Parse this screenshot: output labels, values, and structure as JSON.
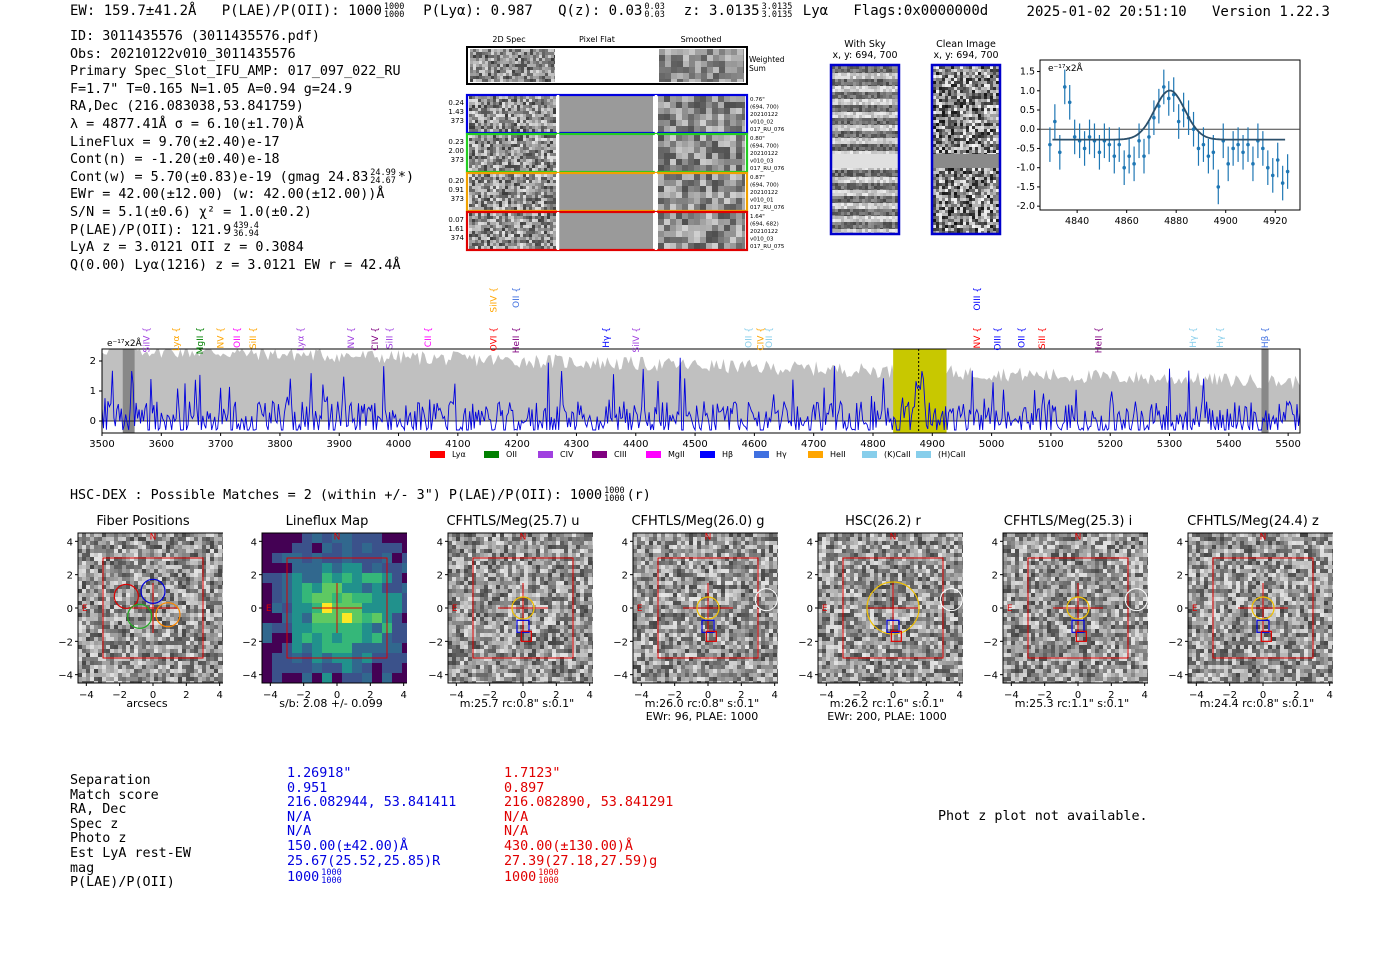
{
  "header": {
    "ew": "EW: 159.7±41.2Å",
    "plae_label": "P(LAE)/P(OII): 1000",
    "plae_hi": "1000",
    "plae_lo": "1000",
    "plya": "P(Lyα): 0.987",
    "qz_label": "Q(z): 0.03",
    "qz_hi": "0.03",
    "qz_lo": "0.03",
    "z_label": "z: 3.0135",
    "z_hi": "3.0135",
    "z_lo": "3.0135",
    "z_line": "Lyα",
    "flags": "Flags:0x0000000d",
    "datetime": "2025-01-02 20:51:10",
    "version": "Version 1.22.3"
  },
  "info": {
    "lines": [
      "ID: 3011435576 (3011435576.pdf)",
      "Obs: 20210122v010_3011435576",
      "Primary Spec_Slot_IFU_AMP: 017_097_022_RU",
      "F=1.7\"  T=0.165  N=1.05  A=0.94  g=24.9",
      "RA,Dec (216.083038,53.841759)",
      "λ = 4877.41Å  σ = 6.10(±1.70)Å",
      "LineFlux = 9.70(±2.40)e-17",
      "Cont(n) = -1.20(±0.40)e-18"
    ],
    "contw": "Cont(w) = 5.70(±0.83)e-19 (gmag 24.83",
    "contw_hi": "24.99",
    "contw_lo": "24.67",
    "contw_end": "*)",
    "lines2": [
      "EWr = 42.00(±12.00) (w: 42.00(±12.00))Å",
      "S/N = 5.1(±0.6)  χ² = 1.0(±0.2)"
    ],
    "plae2": "P(LAE)/P(OII): 121.9",
    "plae2_hi": "439.4",
    "plae2_lo": "36.94",
    "lines3": [
      "LyA z = 3.0121  OII z = 0.3084",
      "Q(0.00) Lyα(1216) z = 3.0121  EW r = 42.4Å"
    ]
  },
  "stamps": {
    "col_titles": [
      "2D Spec",
      "Pixel Flat",
      "Smoothed"
    ],
    "weighted_label": [
      "Weighted",
      "Sum"
    ],
    "rows": [
      {
        "left": [
          "0.24",
          "1.43",
          "373"
        ],
        "right": [
          "0.76\"",
          "(694, 700)",
          "20210122",
          "v010_02",
          "017_RU_076"
        ],
        "color": "#0000e0"
      },
      {
        "left": [
          "0.23",
          "2.00",
          "373"
        ],
        "right": [
          "0.80\"",
          "(694, 700)",
          "20210122",
          "v010_03",
          "017_RU_076"
        ],
        "color": "#22cc22"
      },
      {
        "left": [
          "0.20",
          "0.91",
          "373"
        ],
        "right": [
          "0.87\"",
          "(694, 700)",
          "20210122",
          "v010_01",
          "017_RU_076"
        ],
        "color": "#f0a000"
      },
      {
        "left": [
          "0.07",
          "1.61",
          "374"
        ],
        "right": [
          "1.64\"",
          "(694, 682)",
          "20210122",
          "v010_03",
          "017_RU_075"
        ],
        "color": "#e00000"
      }
    ],
    "sky_title": [
      "With Sky",
      "x, y: 694, 700"
    ],
    "clean_title": [
      "Clean Image",
      "x, y: 694, 700"
    ]
  },
  "chart_data": [
    {
      "type": "line",
      "name": "line-fit-zoom",
      "ylabel": "e⁻¹⁷x2Å",
      "xlim": [
        4825,
        4930
      ],
      "ylim": [
        -2.1,
        1.8
      ],
      "xticks": [
        4840,
        4860,
        4880,
        4900,
        4920
      ],
      "yticks": [
        -2.0,
        -1.5,
        -1.0,
        -0.5,
        0.0,
        0.5,
        1.0,
        1.5
      ],
      "gauss": {
        "center": 4877.4,
        "sigma": 6.1,
        "amp": 1.28,
        "base": -0.27
      },
      "x": [
        4829,
        4831,
        4833,
        4835,
        4837,
        4839,
        4841,
        4843,
        4845,
        4847,
        4849,
        4851,
        4853,
        4855,
        4857,
        4859,
        4861,
        4863,
        4865,
        4867,
        4869,
        4871,
        4873,
        4875,
        4877,
        4879,
        4881,
        4883,
        4885,
        4887,
        4889,
        4891,
        4893,
        4895,
        4897,
        4899,
        4901,
        4903,
        4905,
        4907,
        4909,
        4911,
        4913,
        4915,
        4917,
        4919,
        4921,
        4923,
        4925
      ],
      "y": [
        -0.4,
        0.2,
        -0.6,
        1.1,
        0.7,
        -0.2,
        -0.3,
        -0.5,
        -0.2,
        -0.3,
        -0.6,
        -0.3,
        -0.4,
        -0.7,
        -0.4,
        -1.0,
        -0.7,
        -0.9,
        -0.3,
        -0.7,
        -0.2,
        0.3,
        0.6,
        1.1,
        0.8,
        0.9,
        0.2,
        0.5,
        0.3,
        0.0,
        -0.5,
        -0.4,
        -0.7,
        -0.6,
        -1.5,
        -0.3,
        -0.9,
        -0.5,
        -0.4,
        -0.6,
        -0.4,
        -0.9,
        -0.3,
        -0.5,
        -1.0,
        -1.2,
        -0.8,
        -1.4,
        -1.1
      ],
      "yerr": [
        0.45,
        0.45,
        0.45,
        0.45,
        0.45,
        0.45,
        0.45,
        0.45,
        0.45,
        0.45,
        0.45,
        0.45,
        0.45,
        0.45,
        0.45,
        0.45,
        0.45,
        0.45,
        0.45,
        0.45,
        0.45,
        0.45,
        0.45,
        0.45,
        0.45,
        0.45,
        0.45,
        0.45,
        0.45,
        0.45,
        0.45,
        0.45,
        0.45,
        0.45,
        0.45,
        0.45,
        0.45,
        0.45,
        0.45,
        0.45,
        0.45,
        0.45,
        0.45,
        0.45,
        0.45,
        0.45,
        0.45,
        0.45,
        0.45
      ]
    },
    {
      "type": "line",
      "name": "full-spectrum",
      "ylabel": "e⁻¹⁷x2Å",
      "xlim": [
        3500,
        5520
      ],
      "ylim": [
        -0.4,
        2.4
      ],
      "xticks": [
        3500,
        3600,
        3700,
        3800,
        3900,
        4000,
        4100,
        4200,
        4300,
        4400,
        4500,
        4600,
        4700,
        4800,
        4900,
        5000,
        5100,
        5200,
        5300,
        5400,
        5500
      ],
      "yticks": [
        0,
        1,
        2
      ],
      "highlight_band": [
        4834,
        4924
      ],
      "highlight_line": 4877,
      "gray_bars": [
        3535,
        3555,
        5455,
        5467
      ],
      "legend": [
        {
          "label": "Lyα",
          "color": "#ff0000"
        },
        {
          "label": "OII",
          "color": "#008000"
        },
        {
          "label": "CIV",
          "color": "#a040e0"
        },
        {
          "label": "CIII",
          "color": "#800080"
        },
        {
          "label": "MgII",
          "color": "#ff00ff"
        },
        {
          "label": "Hβ",
          "color": "#0000ff"
        },
        {
          "label": "Hγ",
          "color": "#4070e0"
        },
        {
          "label": "HeII",
          "color": "#ffa500"
        },
        {
          "label": "(K)CaII",
          "color": "#87ceeb"
        },
        {
          "label": "(H)CaII",
          "color": "#87ceeb"
        }
      ],
      "line_markers": [
        {
          "label": "SiIV",
          "x": 3575,
          "color": "#a040e0",
          "row": 1
        },
        {
          "label": "Lyα",
          "x": 3625,
          "color": "#ffa500",
          "row": 1
        },
        {
          "label": "MgII",
          "x": 3665,
          "color": "#008000",
          "row": 1
        },
        {
          "label": "NV",
          "x": 3700,
          "color": "#ffa500",
          "row": 1
        },
        {
          "label": "OII",
          "x": 3728,
          "color": "#ff00ff",
          "row": 1
        },
        {
          "label": "SiII",
          "x": 3755,
          "color": "#ffa500",
          "row": 1
        },
        {
          "label": "Lyα",
          "x": 3835,
          "color": "#a040e0",
          "row": 1
        },
        {
          "label": "NV",
          "x": 3920,
          "color": "#a040e0",
          "row": 1
        },
        {
          "label": "CIV",
          "x": 3960,
          "color": "#800080",
          "row": 1
        },
        {
          "label": "SiII",
          "x": 3985,
          "color": "#a040e0",
          "row": 1
        },
        {
          "label": "CII",
          "x": 4050,
          "color": "#ff00ff",
          "row": 1
        },
        {
          "label": "OVI",
          "x": 4160,
          "color": "#ff0000",
          "row": 1
        },
        {
          "label": "SiIV",
          "x": 4160,
          "color": "#ffa500",
          "row": 0
        },
        {
          "label": "HeII",
          "x": 4198,
          "color": "#800080",
          "row": 1
        },
        {
          "label": "OII",
          "x": 4198,
          "color": "#4070e0",
          "row": 0
        },
        {
          "label": "Hγ",
          "x": 4350,
          "color": "#0000ff",
          "row": 1
        },
        {
          "label": "SiIV",
          "x": 4400,
          "color": "#a040e0",
          "row": 1
        },
        {
          "label": "OII",
          "x": 4590,
          "color": "#87ceeb",
          "row": 1
        },
        {
          "label": "CIV",
          "x": 4610,
          "color": "#ffa500",
          "row": 1
        },
        {
          "label": "OII",
          "x": 4625,
          "color": "#87ceeb",
          "row": 1
        },
        {
          "label": "NV",
          "x": 4975,
          "color": "#ff0000",
          "row": 1
        },
        {
          "label": "OIII",
          "x": 4975,
          "color": "#0000ff",
          "row": 0
        },
        {
          "label": "OIII",
          "x": 5010,
          "color": "#0000ff",
          "row": 1
        },
        {
          "label": "OII",
          "x": 5050,
          "color": "#0000ff",
          "row": 1
        },
        {
          "label": "SiII",
          "x": 5085,
          "color": "#ff0000",
          "row": 1
        },
        {
          "label": "HeII",
          "x": 5180,
          "color": "#800080",
          "row": 1
        },
        {
          "label": "Hγ",
          "x": 5340,
          "color": "#87ceeb",
          "row": 1
        },
        {
          "label": "Hγ",
          "x": 5385,
          "color": "#87ceeb",
          "row": 1
        },
        {
          "label": "Hβ",
          "x": 5461,
          "color": "#4070e0",
          "row": 1
        }
      ]
    }
  ],
  "hsc": {
    "title": "HSC-DEX : Possible Matches = 2 (within +/- 3\")  P(LAE)/P(OII): 1000",
    "title_hi": "1000",
    "title_lo": "1000",
    "title_end": "(r)",
    "cutouts": [
      {
        "title": "Fiber Positions",
        "cap": [
          "arcsecs"
        ]
      },
      {
        "title": "Lineflux Map",
        "cap": [
          "s/b: 2.08 +/- 0.099"
        ]
      },
      {
        "title": "CFHTLS/Meg(25.7) u",
        "cap": [
          "m:25.7 rc:0.8\"  s:0.1\""
        ]
      },
      {
        "title": "CFHTLS/Meg(26.0) g",
        "cap": [
          "m:26.0 rc:0.8\"  s:0.1\"",
          "EWr: 96, PLAE: 1000"
        ]
      },
      {
        "title": "HSC(26.2) r",
        "cap": [
          "m:26.2 rc:1.6\"  s:0.1\"",
          "EWr: 200, PLAE: 1000"
        ]
      },
      {
        "title": "CFHTLS/Meg(25.3) i",
        "cap": [
          "m:25.3 rc:1.1\"  s:0.1\""
        ]
      },
      {
        "title": "CFHTLS/Meg(24.4) z",
        "cap": [
          "m:24.4 rc:0.8\"  s:0.1\""
        ]
      }
    ],
    "axis_ticks": [
      "4",
      "2",
      "0",
      "−2",
      "−4"
    ],
    "xaxis_ticks": [
      "−4",
      "−2",
      "0",
      "2",
      "4"
    ],
    "compass_n": "N",
    "compass_e": "E"
  },
  "table": {
    "labels": [
      "Separation",
      "Match score",
      "RA, Dec",
      "Spec z",
      "Photo z",
      "Est LyA rest-EW",
      "mag",
      "P(LAE)/P(OII)"
    ],
    "a": [
      "1.26918\"",
      "0.951",
      "216.082944, 53.841411",
      "N/A",
      "N/A",
      "150.00(±42.00)Å",
      "25.67(25.52,25.85)R",
      "1000"
    ],
    "a_plae_hi": "1000",
    "a_plae_lo": "1000",
    "b": [
      "1.7123\"",
      "0.897",
      "216.082890, 53.841291",
      "N/A",
      "N/A",
      "430.00(±130.00)Å",
      "27.39(27.18,27.59)g",
      "1000"
    ],
    "b_plae_hi": "1000",
    "b_plae_lo": "1000",
    "photz_note": "Phot z plot not available."
  }
}
